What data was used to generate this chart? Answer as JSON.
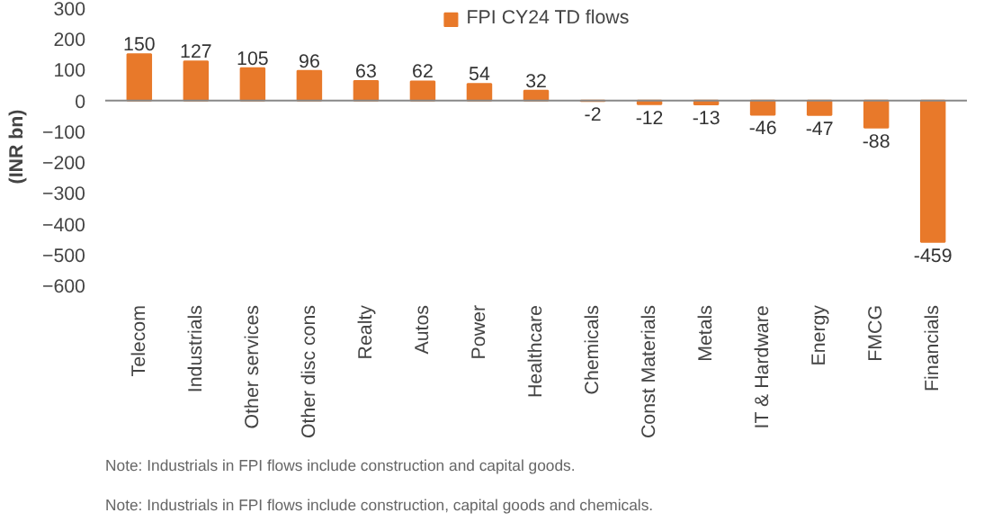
{
  "chart_data": {
    "type": "bar",
    "categories": [
      "Telecom",
      "Industrials",
      "Other services",
      "Other disc cons",
      "Realty",
      "Autos",
      "Power",
      "Healthcare",
      "Chemicals",
      "Const Materials",
      "Metals",
      "IT & Hardware",
      "Energy",
      "FMCG",
      "Financials"
    ],
    "series": [
      {
        "name": "FPI CY24 TD flows",
        "color": "#e8792a",
        "values": [
          150,
          127,
          105,
          96,
          63,
          62,
          54,
          32,
          -2,
          -12,
          -13,
          -46,
          -47,
          -88,
          -459
        ]
      }
    ],
    "ylabel": "(INR bn)",
    "ylim": [
      -600,
      300
    ],
    "yticks": [
      -600,
      -500,
      -400,
      -300,
      -200,
      -100,
      0,
      100,
      200,
      300
    ],
    "data_labels": true,
    "legend": "top",
    "grid": false,
    "ref_lines": [
      {
        "axis": "y",
        "value": 0,
        "color": "#888888"
      }
    ],
    "annotations": [
      "Note: Industrials in FPI flows include construction and capital goods.",
      "Note: Industrials in FPI flows include construction, capital goods and chemicals."
    ]
  }
}
